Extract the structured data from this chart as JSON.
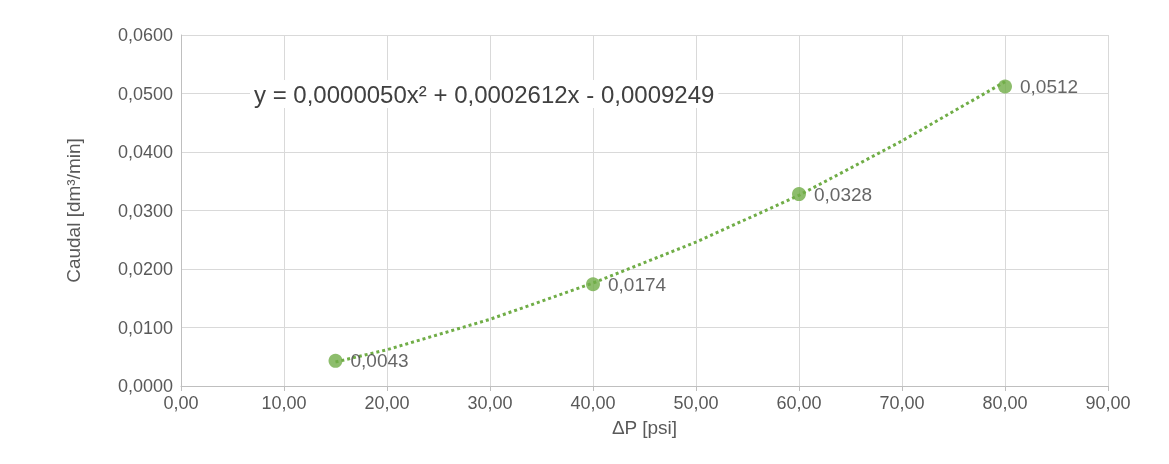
{
  "chart_data": {
    "type": "scatter",
    "xlabel": "ΔP [psi]",
    "ylabel": "Caudal [dm³/min]",
    "annotations": [
      "y = 0,0000050x² + 0,0002612x - 0,0009249"
    ],
    "series": [
      {
        "color": "#70ad47",
        "x": [
          15,
          40,
          60,
          80
        ],
        "values": [
          0.0043,
          0.0174,
          0.0328,
          0.0512
        ],
        "value_labels": [
          "0,0043",
          "0,0174",
          "0,0328",
          "0,0512"
        ],
        "marker": "circle"
      },
      {
        "type": "line",
        "color": "#70ad47",
        "line_style": "dotted",
        "marker": "none",
        "x": [
          15,
          20,
          30,
          40,
          50,
          60,
          70,
          80
        ],
        "values": [
          0.0041,
          0.0062,
          0.0114,
          0.0176,
          0.0246,
          0.0326,
          0.0419,
          0.052
        ]
      }
    ],
    "xlim": [
      0,
      90
    ],
    "ylim": [
      0,
      0.06
    ],
    "xticks": [
      {
        "value": 0,
        "label": "0,00"
      },
      {
        "value": 10,
        "label": "10,00"
      },
      {
        "value": 20,
        "label": "20,00"
      },
      {
        "value": 30,
        "label": "30,00"
      },
      {
        "value": 40,
        "label": "40,00"
      },
      {
        "value": 50,
        "label": "50,00"
      },
      {
        "value": 60,
        "label": "60,00"
      },
      {
        "value": 70,
        "label": "70,00"
      },
      {
        "value": 80,
        "label": "80,00"
      },
      {
        "value": 90,
        "label": "90,00"
      }
    ],
    "yticks": [
      {
        "value": 0,
        "label": "0,0000"
      },
      {
        "value": 0.01,
        "label": "0,0100"
      },
      {
        "value": 0.02,
        "label": "0,0200"
      },
      {
        "value": 0.03,
        "label": "0,0300"
      },
      {
        "value": 0.04,
        "label": "0,0400"
      },
      {
        "value": 0.05,
        "label": "0,0500"
      },
      {
        "value": 0.06,
        "label": "0,0600"
      }
    ],
    "grid": true
  }
}
